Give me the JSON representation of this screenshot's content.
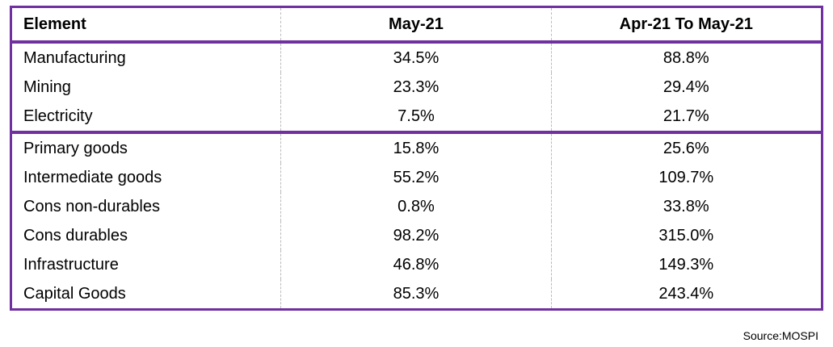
{
  "table": {
    "header": [
      "Element",
      "May-21",
      "Apr-21 To May-21"
    ],
    "groups": [
      [
        [
          "Manufacturing",
          "34.5%",
          "88.8%"
        ],
        [
          "Mining",
          "23.3%",
          "29.4%"
        ],
        [
          "Electricity",
          "7.5%",
          "21.7%"
        ]
      ],
      [
        [
          "Primary goods",
          "15.8%",
          "25.6%"
        ],
        [
          "Intermediate goods",
          "55.2%",
          "109.7%"
        ],
        [
          "Cons non-durables",
          "0.8%",
          "33.8%"
        ],
        [
          "Cons durables",
          "98.2%",
          "315.0%"
        ],
        [
          "Infrastructure",
          "46.8%",
          "149.3%"
        ],
        [
          "Capital Goods",
          "85.3%",
          "243.4%"
        ]
      ]
    ]
  },
  "source": "Source:MOSPI"
}
